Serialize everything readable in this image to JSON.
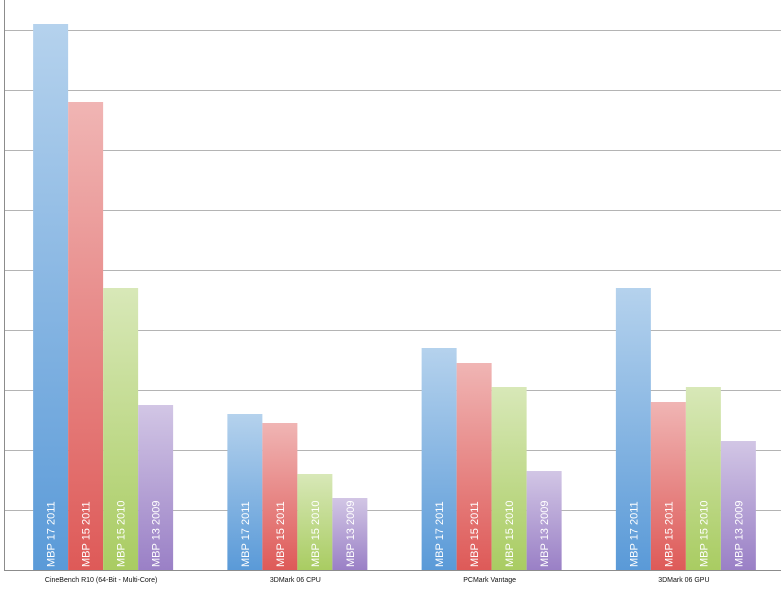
{
  "chart_data": {
    "type": "bar",
    "title": "",
    "xlabel": "",
    "ylabel": "",
    "categories": [
      "CineBench R10 (64-Bit - Multi-Core)",
      "3DMark 06 CPU",
      "PCMark Vantage",
      "3DMark 06 GPU"
    ],
    "series": [
      {
        "name": "MBP 17 2011",
        "color": "#5a9ad8",
        "values": [
          9.1,
          2.6,
          3.7,
          4.7
        ]
      },
      {
        "name": "MBP 15 2011",
        "color": "#de5a58",
        "values": [
          7.8,
          2.45,
          3.45,
          2.8
        ]
      },
      {
        "name": "MBP 15 2010",
        "color": "#a9cc62",
        "values": [
          4.7,
          1.6,
          3.05,
          3.05
        ]
      },
      {
        "name": "MBP 13 2009",
        "color": "#9a80c6",
        "values": [
          2.75,
          1.2,
          1.65,
          2.15
        ]
      }
    ],
    "ylim": [
      0,
      9.5
    ],
    "grid": true,
    "gridlines": 9,
    "legend": "none",
    "series_labels_inside_bars": true
  }
}
